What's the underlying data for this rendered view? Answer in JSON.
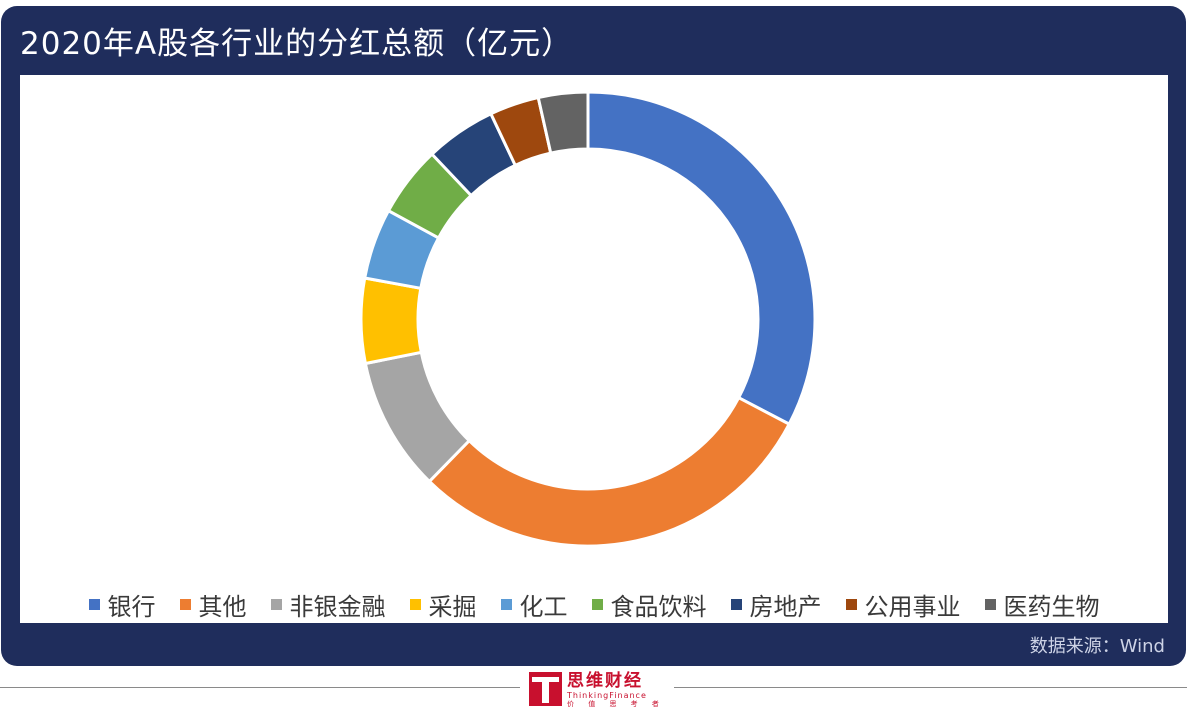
{
  "title": "2020年A股各行业的分红总额（亿元）",
  "source": "数据来源：Wind",
  "brand": {
    "name": "思维财经",
    "name_en": "ThinkingFinance",
    "tagline": "价 值 思 考 者"
  },
  "chart_data": {
    "type": "pie",
    "donut": true,
    "title": "2020年A股各行业的分红总额（亿元）",
    "legend_position": "bottom",
    "categories": [
      "银行",
      "其他",
      "非银金融",
      "采掘",
      "化工",
      "食品饮料",
      "房地产",
      "公用事业",
      "医药生物"
    ],
    "values": [
      32.5,
      29.5,
      9.5,
      6.0,
      5.0,
      5.0,
      5.0,
      3.5,
      3.5
    ],
    "colors": [
      "#4472c4",
      "#ed7d31",
      "#a5a5a5",
      "#ffc000",
      "#5b9bd5",
      "#70ad47",
      "#264478",
      "#9e480e",
      "#636363"
    ]
  }
}
